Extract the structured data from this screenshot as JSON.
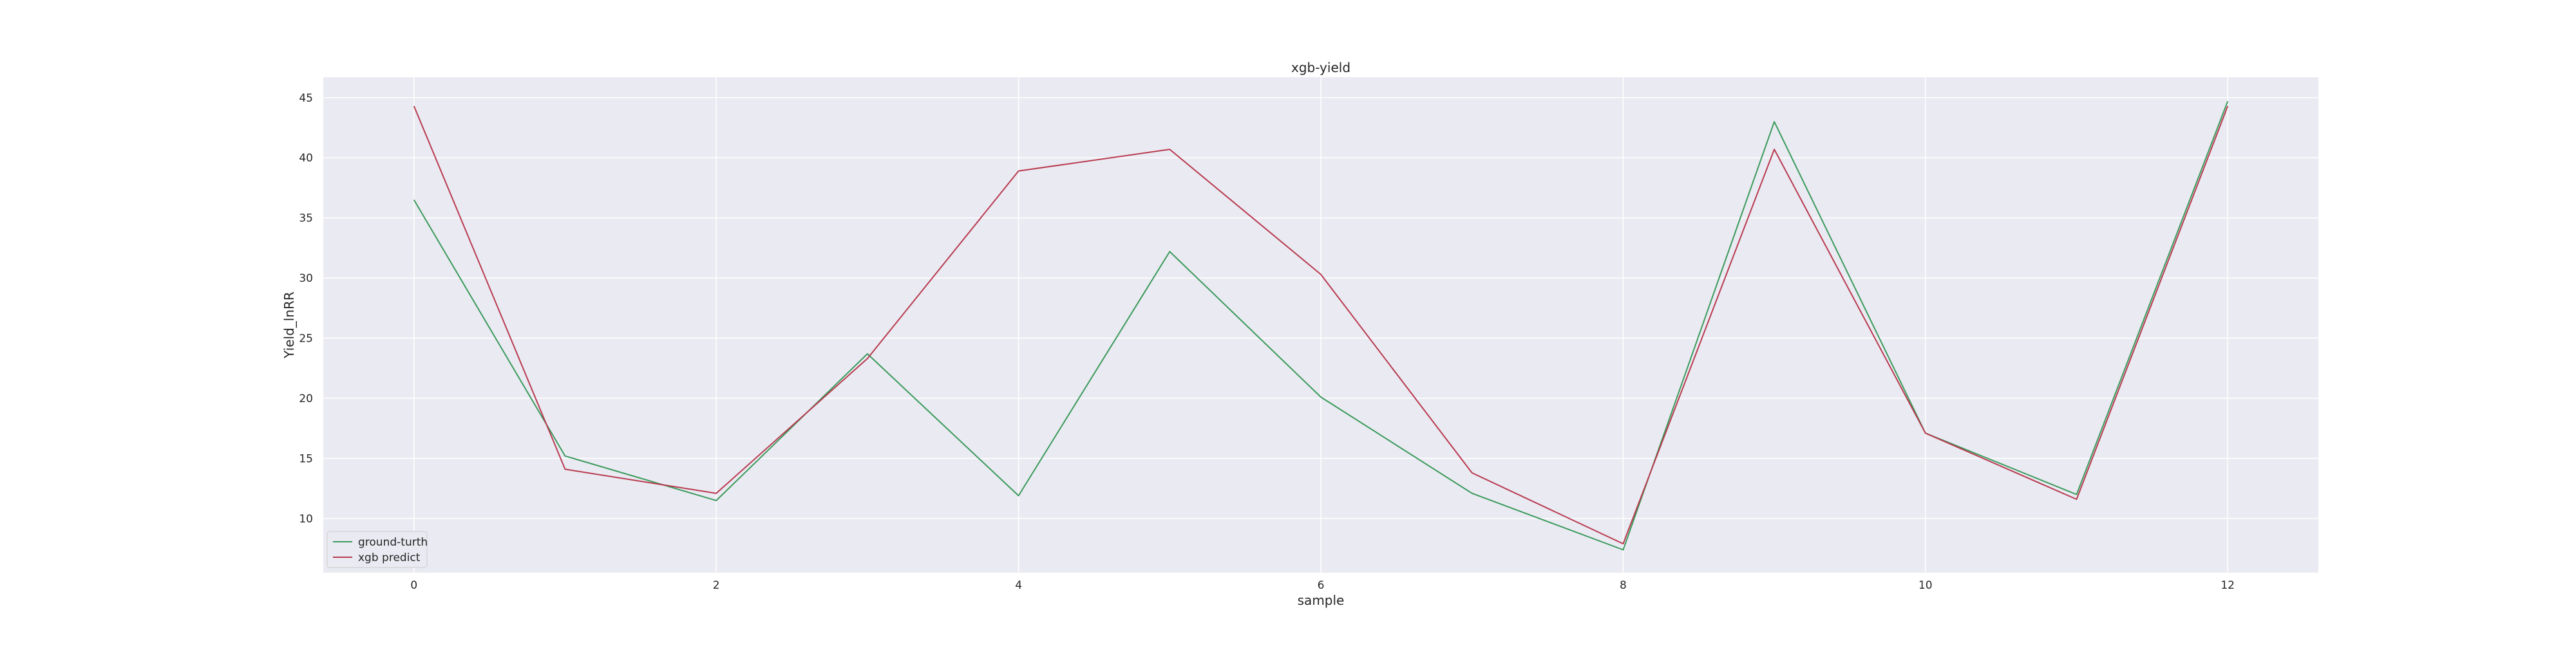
{
  "chart_data": {
    "type": "line",
    "title": "xgb-yield",
    "xlabel": "sample",
    "ylabel": "Yield_lnRR",
    "x": [
      0,
      1,
      2,
      3,
      4,
      5,
      6,
      7,
      8,
      9,
      10,
      11,
      12
    ],
    "xticks": [
      0,
      2,
      4,
      6,
      8,
      10,
      12
    ],
    "yticks": [
      10,
      15,
      20,
      25,
      30,
      35,
      40,
      45
    ],
    "xlim": [
      -0.6,
      12.6
    ],
    "ylim": [
      5.5,
      46.7
    ],
    "grid": true,
    "legend_position": "lower-left",
    "series": [
      {
        "name": "ground-turth",
        "color": "#3a9a5b",
        "values": [
          36.5,
          15.2,
          11.5,
          23.7,
          11.9,
          32.2,
          20.1,
          12.1,
          7.4,
          43.0,
          17.1,
          12.0,
          44.7
        ]
      },
      {
        "name": "xgb predict",
        "color": "#b83a4f",
        "values": [
          44.3,
          14.1,
          12.1,
          23.3,
          38.9,
          40.7,
          30.3,
          13.8,
          7.9,
          40.7,
          17.1,
          11.6,
          44.3
        ]
      }
    ]
  }
}
